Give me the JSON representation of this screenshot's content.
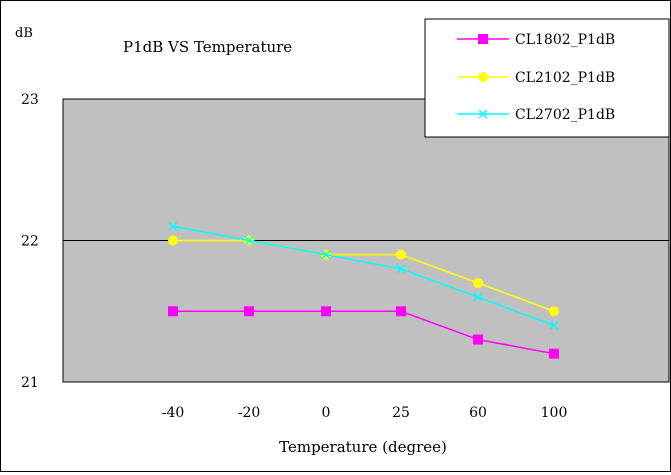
{
  "chart_data": {
    "type": "line",
    "title": "P1dB  VS Temperature",
    "xlabel": "Temperature (degree)",
    "ylabel": "dB",
    "categories": [
      "-40",
      "-20",
      "0",
      "25",
      "60",
      "100"
    ],
    "ylim": [
      21,
      23
    ],
    "yticks": [
      "21",
      "22",
      "23"
    ],
    "grid": "major y at 22",
    "legend_position": "top-right",
    "plot_background": "#c0c0c0",
    "series": [
      {
        "name": "CL1802_P1dB",
        "color": "#ff00ff",
        "marker": "square",
        "values": [
          21.5,
          21.5,
          21.5,
          21.5,
          21.3,
          21.2
        ]
      },
      {
        "name": "CL2102_P1dB",
        "color": "#ffff00",
        "marker": "circle",
        "values": [
          22.0,
          22.0,
          21.9,
          21.9,
          21.7,
          21.5
        ]
      },
      {
        "name": "CL2702_P1dB",
        "color": "#00ffff",
        "marker": "x",
        "values": [
          22.1,
          22.0,
          21.9,
          21.8,
          21.6,
          21.4
        ]
      }
    ]
  }
}
